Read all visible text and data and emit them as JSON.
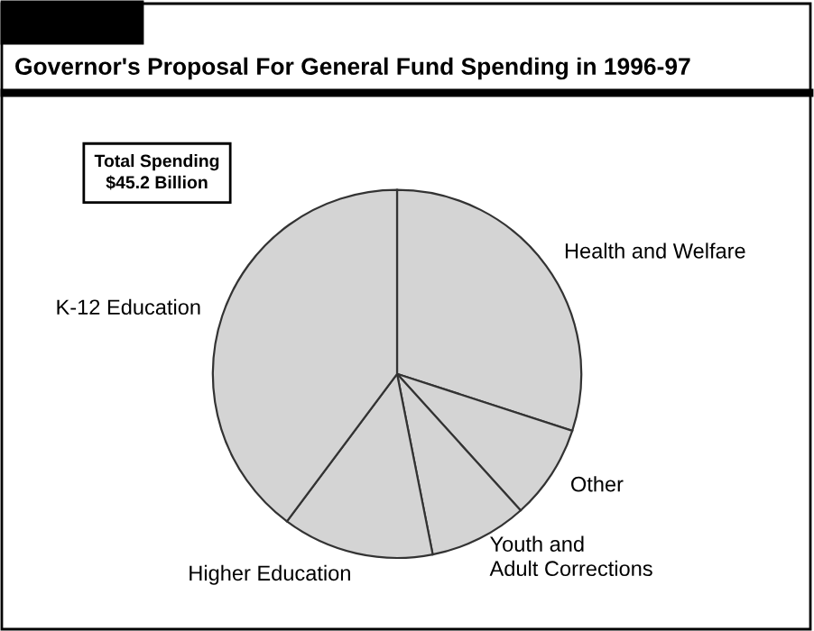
{
  "chart_data": {
    "type": "pie",
    "title": "Governor's Proposal For General Fund Spending in 1996-97",
    "categories": [
      "Health and Welfare",
      "Other",
      "Youth and\nAdult Corrections",
      "Higher Education",
      "K-12 Education"
    ],
    "values": [
      30,
      8.3,
      8.6,
      13.3,
      39.8
    ],
    "colors": [
      "#d4d4d4",
      "#d4d4d4",
      "#d4d4d4",
      "#d4d4d4",
      "#d4d4d4"
    ],
    "annotations": [
      "Total Spending\n$45.2 Billion"
    ],
    "legend": false
  }
}
